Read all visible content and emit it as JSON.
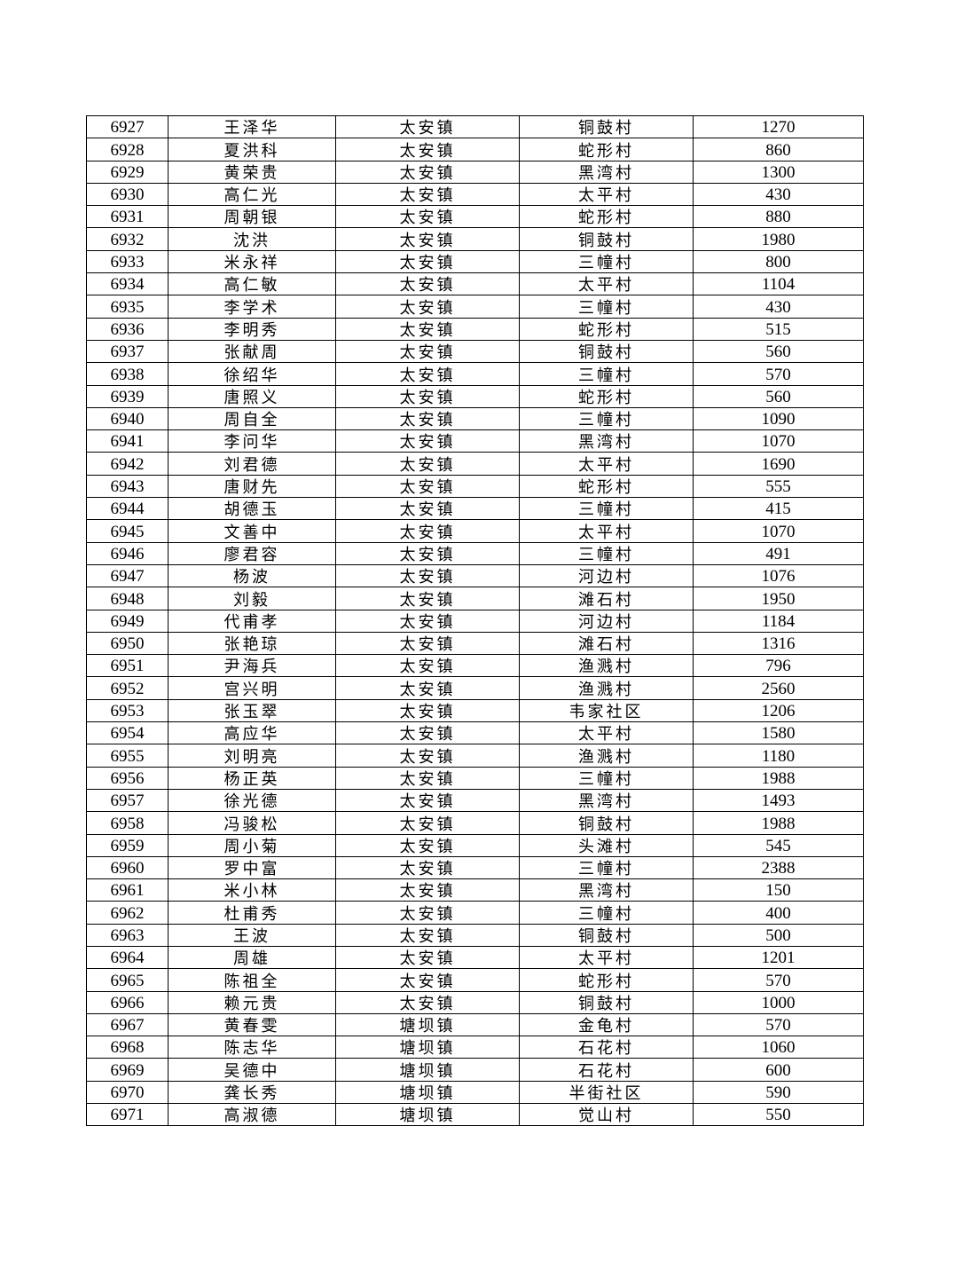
{
  "rows": [
    [
      "6927",
      "王泽华",
      "太安镇",
      "铜鼓村",
      "1270"
    ],
    [
      "6928",
      "夏洪科",
      "太安镇",
      "蛇形村",
      "860"
    ],
    [
      "6929",
      "黄荣贵",
      "太安镇",
      "黑湾村",
      "1300"
    ],
    [
      "6930",
      "高仁光",
      "太安镇",
      "太平村",
      "430"
    ],
    [
      "6931",
      "周朝银",
      "太安镇",
      "蛇形村",
      "880"
    ],
    [
      "6932",
      "沈洪",
      "太安镇",
      "铜鼓村",
      "1980"
    ],
    [
      "6933",
      "米永祥",
      "太安镇",
      "三幢村",
      "800"
    ],
    [
      "6934",
      "高仁敏",
      "太安镇",
      "太平村",
      "1104"
    ],
    [
      "6935",
      "李学术",
      "太安镇",
      "三幢村",
      "430"
    ],
    [
      "6936",
      "李明秀",
      "太安镇",
      "蛇形村",
      "515"
    ],
    [
      "6937",
      "张献周",
      "太安镇",
      "铜鼓村",
      "560"
    ],
    [
      "6938",
      "徐绍华",
      "太安镇",
      "三幢村",
      "570"
    ],
    [
      "6939",
      "唐照义",
      "太安镇",
      "蛇形村",
      "560"
    ],
    [
      "6940",
      "周自全",
      "太安镇",
      "三幢村",
      "1090"
    ],
    [
      "6941",
      "李问华",
      "太安镇",
      "黑湾村",
      "1070"
    ],
    [
      "6942",
      "刘君德",
      "太安镇",
      "太平村",
      "1690"
    ],
    [
      "6943",
      "唐财先",
      "太安镇",
      "蛇形村",
      "555"
    ],
    [
      "6944",
      "胡德玉",
      "太安镇",
      "三幢村",
      "415"
    ],
    [
      "6945",
      "文善中",
      "太安镇",
      "太平村",
      "1070"
    ],
    [
      "6946",
      "廖君容",
      "太安镇",
      "三幢村",
      "491"
    ],
    [
      "6947",
      "杨波",
      "太安镇",
      "河边村",
      "1076"
    ],
    [
      "6948",
      "刘毅",
      "太安镇",
      "滩石村",
      "1950"
    ],
    [
      "6949",
      "代甫孝",
      "太安镇",
      "河边村",
      "1184"
    ],
    [
      "6950",
      "张艳琼",
      "太安镇",
      "滩石村",
      "1316"
    ],
    [
      "6951",
      "尹海兵",
      "太安镇",
      "渔溅村",
      "796"
    ],
    [
      "6952",
      "宫兴明",
      "太安镇",
      "渔溅村",
      "2560"
    ],
    [
      "6953",
      "张玉翠",
      "太安镇",
      "韦家社区",
      "1206"
    ],
    [
      "6954",
      "高应华",
      "太安镇",
      "太平村",
      "1580"
    ],
    [
      "6955",
      "刘明亮",
      "太安镇",
      "渔溅村",
      "1180"
    ],
    [
      "6956",
      "杨正英",
      "太安镇",
      "三幢村",
      "1988"
    ],
    [
      "6957",
      "徐光德",
      "太安镇",
      "黑湾村",
      "1493"
    ],
    [
      "6958",
      "冯骏松",
      "太安镇",
      "铜鼓村",
      "1988"
    ],
    [
      "6959",
      "周小菊",
      "太安镇",
      "头滩村",
      "545"
    ],
    [
      "6960",
      "罗中富",
      "太安镇",
      "三幢村",
      "2388"
    ],
    [
      "6961",
      "米小林",
      "太安镇",
      "黑湾村",
      "150"
    ],
    [
      "6962",
      "杜甫秀",
      "太安镇",
      "三幢村",
      "400"
    ],
    [
      "6963",
      "王波",
      "太安镇",
      "铜鼓村",
      "500"
    ],
    [
      "6964",
      "周雄",
      "太安镇",
      "太平村",
      "1201"
    ],
    [
      "6965",
      "陈祖全",
      "太安镇",
      "蛇形村",
      "570"
    ],
    [
      "6966",
      "赖元贵",
      "太安镇",
      "铜鼓村",
      "1000"
    ],
    [
      "6967",
      "黄春雯",
      "塘坝镇",
      "金龟村",
      "570"
    ],
    [
      "6968",
      "陈志华",
      "塘坝镇",
      "石花村",
      "1060"
    ],
    [
      "6969",
      "吴德中",
      "塘坝镇",
      "石花村",
      "600"
    ],
    [
      "6970",
      "龚长秀",
      "塘坝镇",
      "半街社区",
      "590"
    ],
    [
      "6971",
      "高淑德",
      "塘坝镇",
      "觉山村",
      "550"
    ]
  ]
}
